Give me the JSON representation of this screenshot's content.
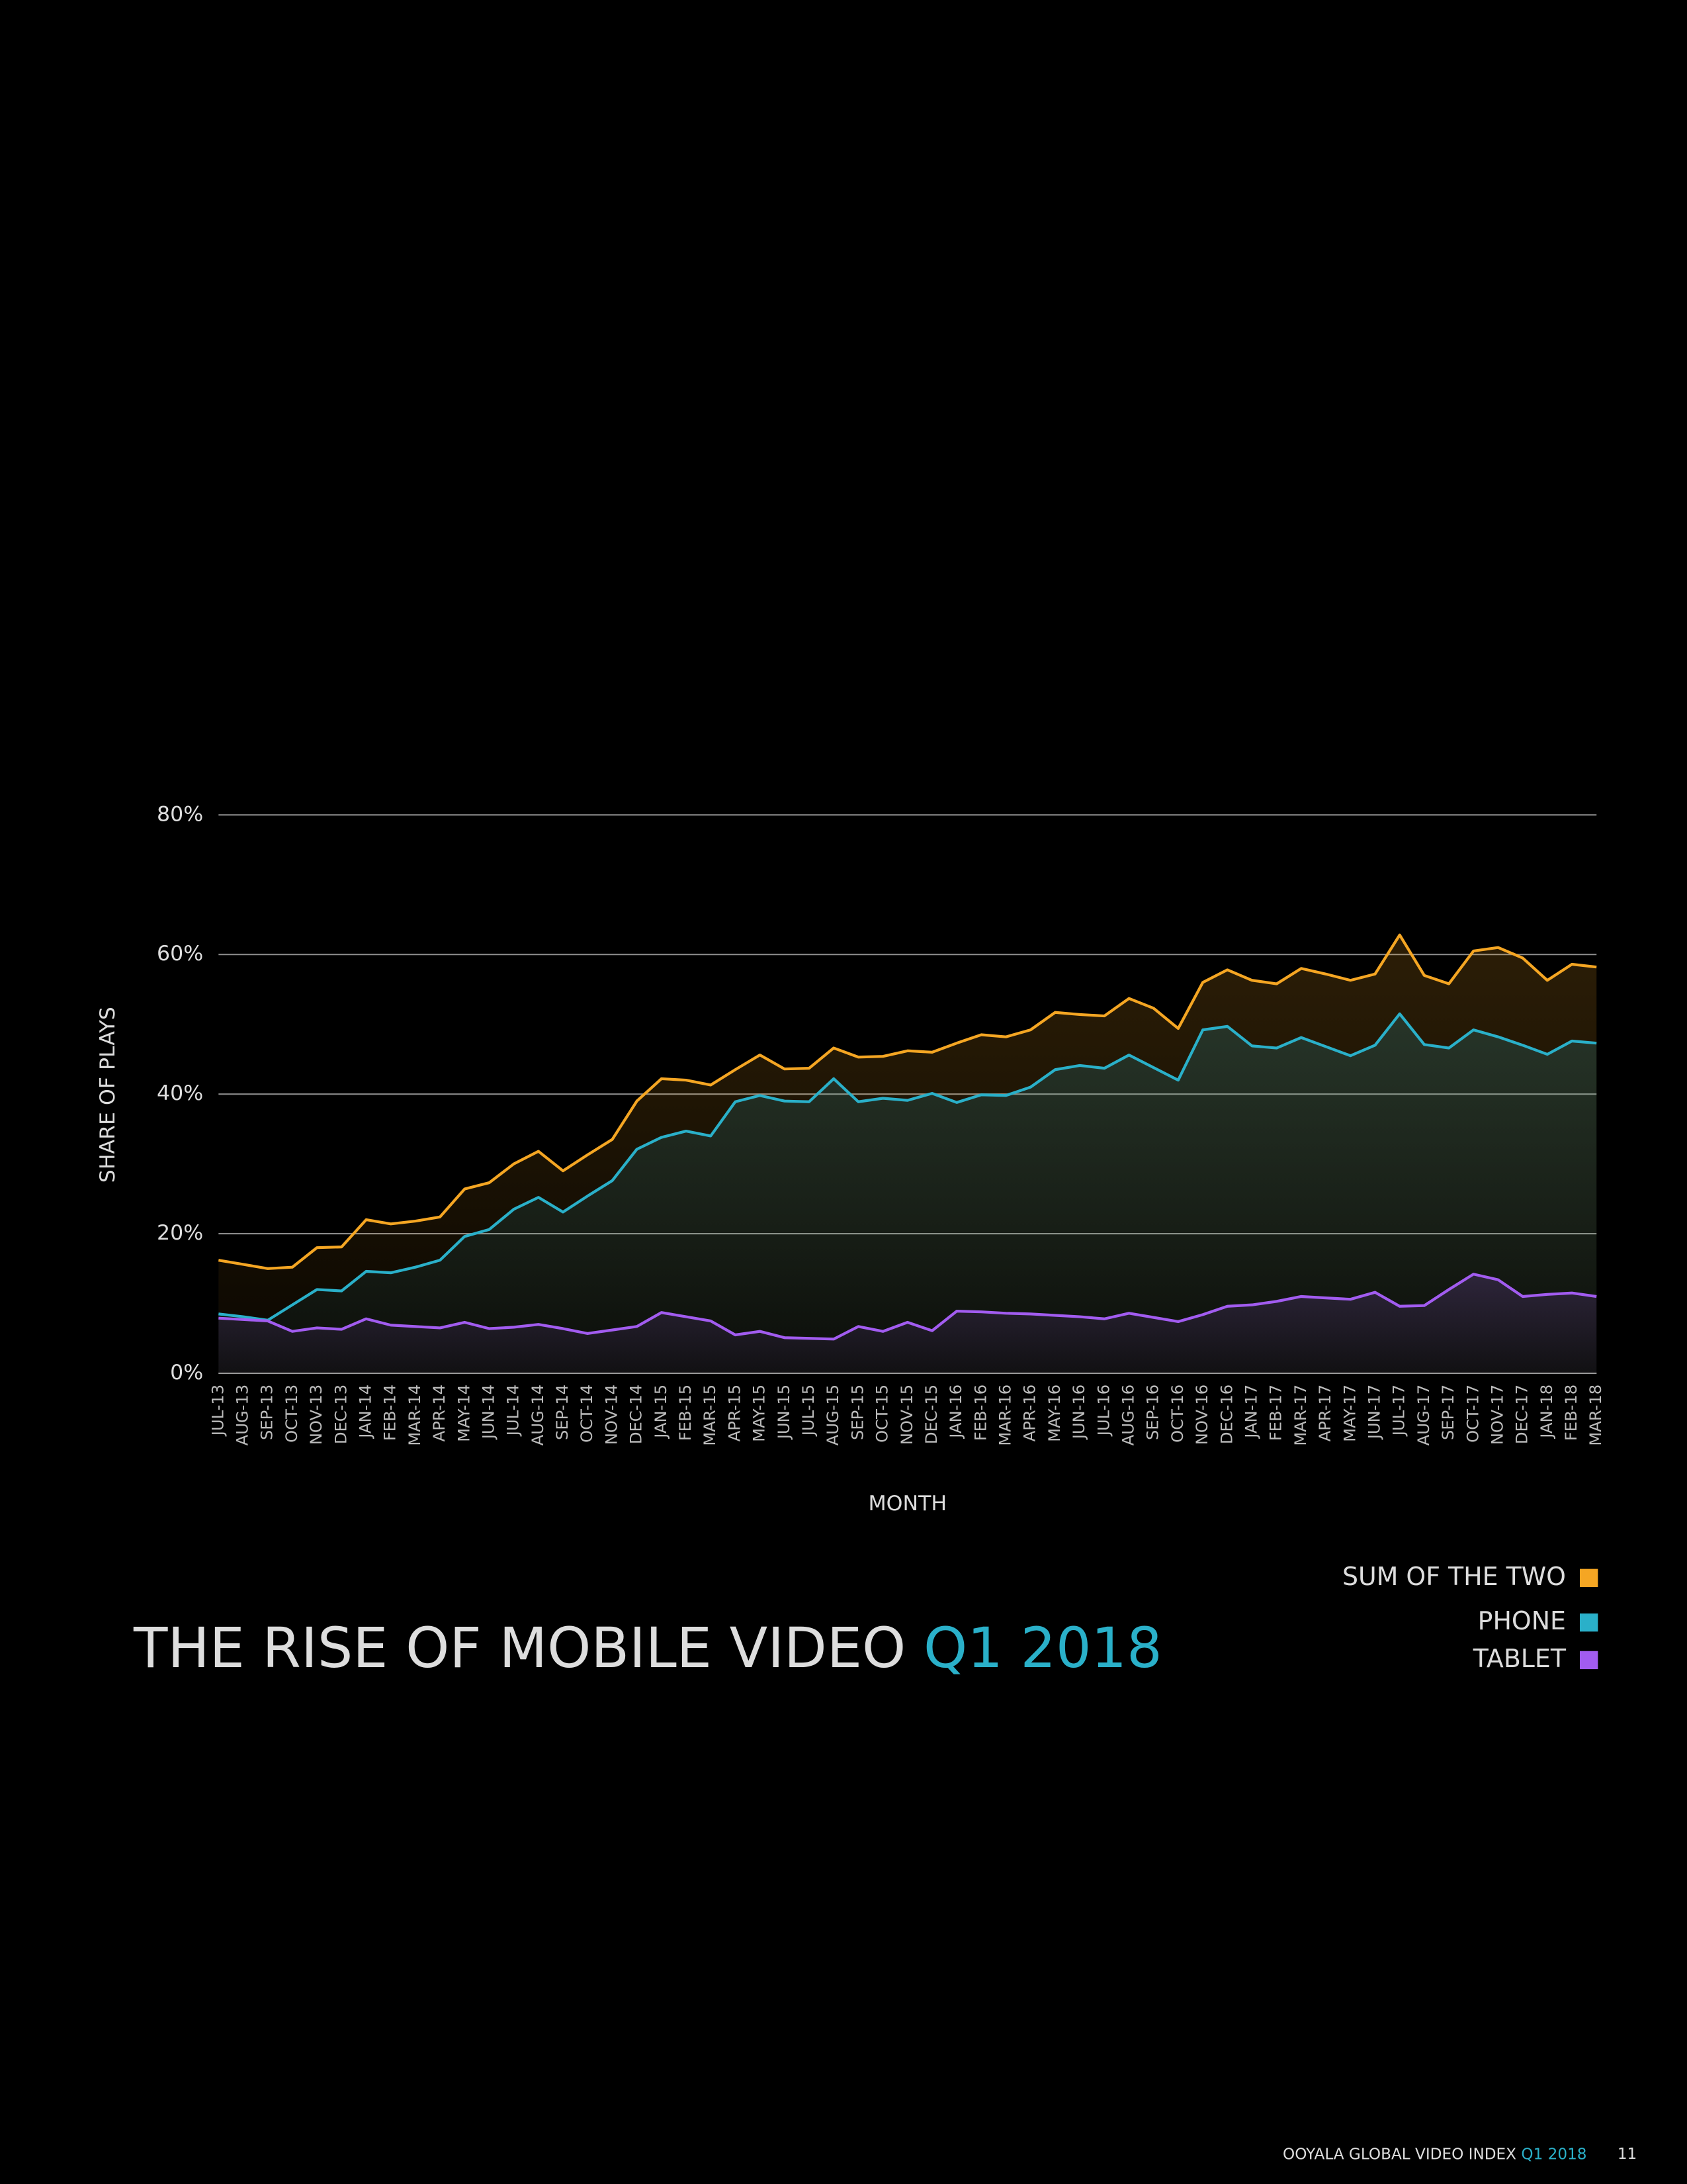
{
  "chart_data": {
    "type": "line",
    "title": "THE RISE OF MOBILE VIDEO",
    "title_highlight": "Q1 2018",
    "y_label": "SHARE OF PLAYS",
    "x_label": "MONTH",
    "categories": [
      "JUL-13",
      "AUG-13",
      "SEP-13",
      "OCT-13",
      "NOV-13",
      "DEC-13",
      "JAN-14",
      "FEB-14",
      "MAR-14",
      "APR-14",
      "MAY-14",
      "JUN-14",
      "JUL-14",
      "AUG-14",
      "SEP-14",
      "OCT-14",
      "NOV-14",
      "DEC-14",
      "JAN-15",
      "FEB-15",
      "MAR-15",
      "APR-15",
      "MAY-15",
      "JUN-15",
      "JUL-15",
      "AUG-15",
      "SEP-15",
      "OCT-15",
      "NOV-15",
      "DEC-15",
      "JAN-16",
      "FEB-16",
      "MAR-16",
      "APR-16",
      "MAY-16",
      "JUN-16",
      "JUL-16",
      "AUG-16",
      "SEP-16",
      "OCT-16",
      "NOV-16",
      "DEC-16",
      "JAN-17",
      "FEB-17",
      "MAR-17",
      "APR-17",
      "MAY-17",
      "JUN-17",
      "JUL-17",
      "AUG-17",
      "SEP-17",
      "OCT-17",
      "NOV-17",
      "DEC-17",
      "JAN-18",
      "FEB-18",
      "MAR-18"
    ],
    "series": [
      {
        "name": "SUM OF THE TWO",
        "color": "#f5a623",
        "values": [
          16.2,
          15.6,
          15.0,
          15.2,
          18.0,
          18.1,
          22.0,
          21.4,
          21.8,
          22.4,
          26.4,
          27.3,
          30.0,
          31.8,
          29.0,
          31.3,
          33.5,
          39.0,
          42.2,
          42.0,
          41.3,
          43.5,
          45.6,
          43.6,
          43.7,
          46.6,
          45.3,
          45.4,
          46.2,
          46.0,
          47.3,
          48.5,
          48.2,
          49.2,
          51.7,
          51.4,
          51.2,
          53.7,
          52.3,
          49.4,
          56.0,
          57.8,
          56.3,
          55.8,
          58.0,
          57.2,
          56.3,
          57.2,
          62.8,
          57.0,
          55.8,
          60.5,
          61.0,
          59.5,
          56.3,
          58.6,
          58.2
        ]
      },
      {
        "name": "PHONE",
        "color": "#2ab0c9",
        "values": [
          8.5,
          8.1,
          7.6,
          9.8,
          12.0,
          11.8,
          14.6,
          14.4,
          15.2,
          16.2,
          19.6,
          20.6,
          23.5,
          25.2,
          23.1,
          25.4,
          27.6,
          32.1,
          33.8,
          34.7,
          34.0,
          38.9,
          39.8,
          39.0,
          38.9,
          42.2,
          38.9,
          39.4,
          39.1,
          40.1,
          38.8,
          39.9,
          39.8,
          41.0,
          43.5,
          44.1,
          43.7,
          45.6,
          43.8,
          42.0,
          49.2,
          49.7,
          46.9,
          46.6,
          48.1,
          46.8,
          45.5,
          47.0,
          51.5,
          47.1,
          46.6,
          49.2,
          48.2,
          47.0,
          45.7,
          47.6,
          47.3
        ]
      },
      {
        "name": "TABLET",
        "color": "#a25cf0",
        "values": [
          7.9,
          7.7,
          7.5,
          6.0,
          6.5,
          6.3,
          7.8,
          6.9,
          6.7,
          6.5,
          7.3,
          6.4,
          6.6,
          7.0,
          6.4,
          5.7,
          6.2,
          6.7,
          8.7,
          8.1,
          7.5,
          5.5,
          6.0,
          5.1,
          5.0,
          4.9,
          6.7,
          6.0,
          7.3,
          6.1,
          8.9,
          8.8,
          8.6,
          8.5,
          8.3,
          8.1,
          7.8,
          8.6,
          8.0,
          7.4,
          8.4,
          9.6,
          9.8,
          10.3,
          11.0,
          10.8,
          10.6,
          11.6,
          9.6,
          9.7,
          12.0,
          14.2,
          13.4,
          11.0,
          11.3,
          11.5,
          11.0
        ]
      }
    ],
    "ylim": [
      0,
      80
    ],
    "yticks": [
      {
        "value": 0,
        "label": "0%"
      },
      {
        "value": 20,
        "label": "20%"
      },
      {
        "value": 40,
        "label": "40%"
      },
      {
        "value": 60,
        "label": "60%"
      },
      {
        "value": 80,
        "label": "80%"
      }
    ],
    "grid": true,
    "legend": "lower right"
  },
  "footer": {
    "text": "OOYALA GLOBAL VIDEO INDEX",
    "highlight": "Q1 2018",
    "page": "11"
  }
}
